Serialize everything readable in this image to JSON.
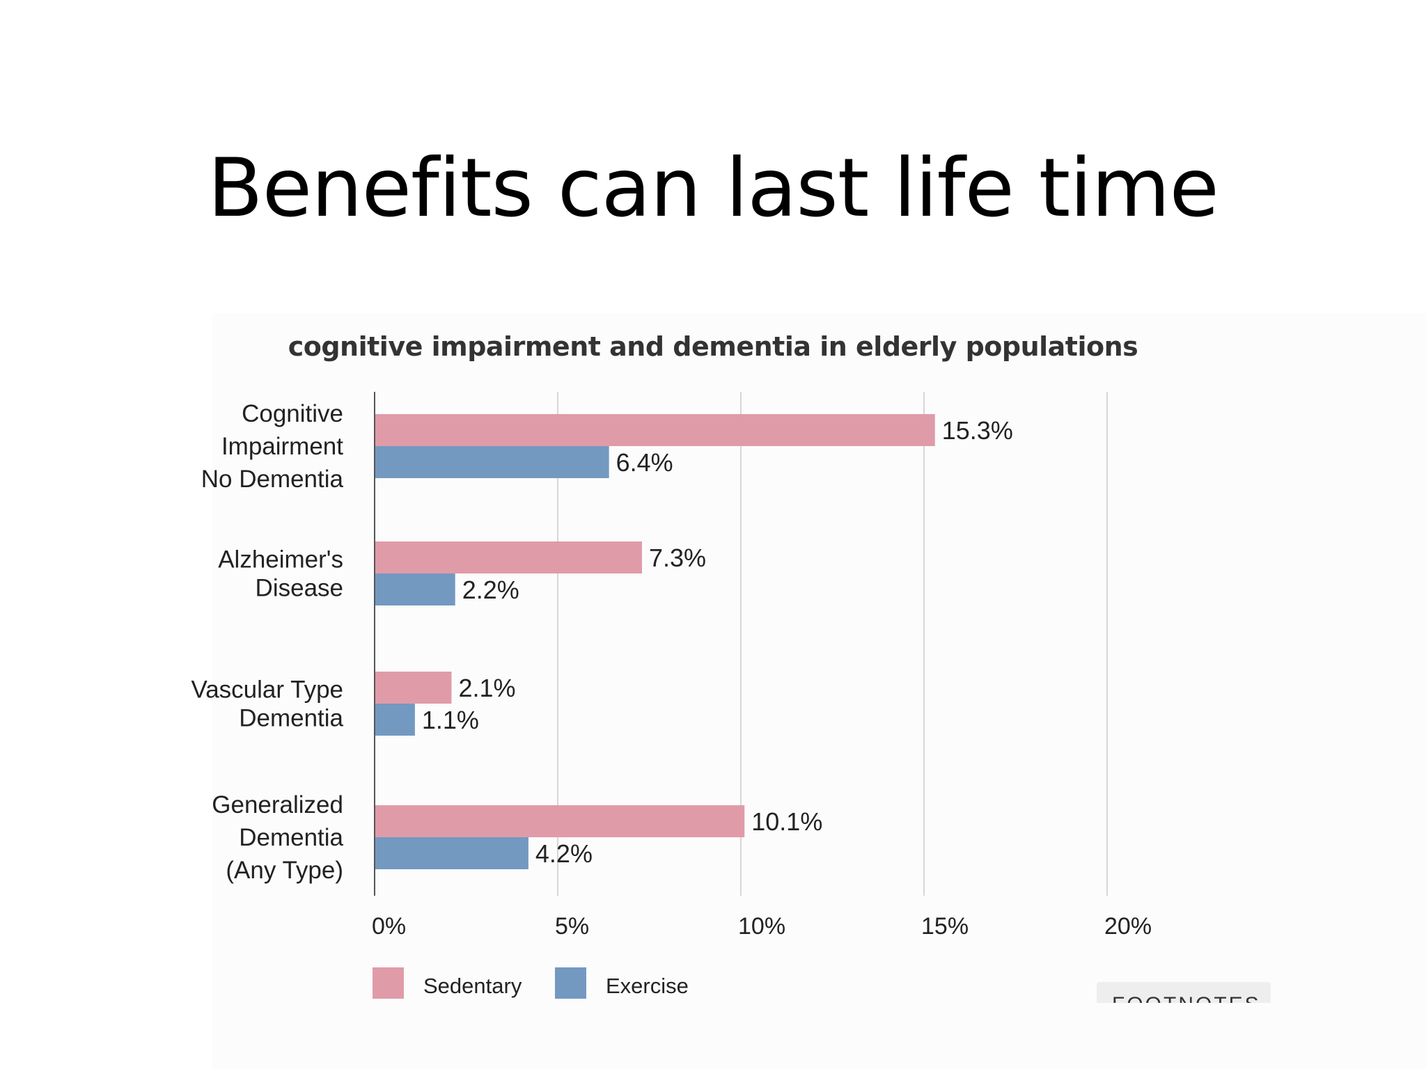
{
  "slide": {
    "title": "Benefits can last life time"
  },
  "footnotes_label": "FOOTNOTES",
  "colors": {
    "sedentary": "#e09ba9",
    "exercise": "#7399c1",
    "grid": "#c9c9cc",
    "axis": "#555555",
    "text": "#222222"
  },
  "chart_data": {
    "type": "bar",
    "orientation": "horizontal",
    "title": "cognitive impairment and dementia in elderly populations",
    "categories": [
      [
        "Cognitive",
        "Impairment",
        "No Dementia"
      ],
      [
        "Alzheimer's",
        "Disease"
      ],
      [
        "Vascular Type",
        "Dementia"
      ],
      [
        "Generalized",
        "Dementia",
        "(Any Type)"
      ]
    ],
    "series": [
      {
        "name": "Sedentary",
        "values": [
          15.3,
          7.3,
          2.1,
          10.1
        ],
        "labels": [
          "15.3%",
          "7.3%",
          "2.1%",
          "10.1%"
        ]
      },
      {
        "name": "Exercise",
        "values": [
          6.4,
          2.2,
          1.1,
          4.2
        ],
        "labels": [
          "6.4%",
          "2.2%",
          "1.1%",
          "4.2%"
        ]
      }
    ],
    "xlim": [
      0,
      20
    ],
    "xticks": [
      0,
      5,
      10,
      15,
      20
    ],
    "xtick_labels": [
      "0%",
      "5%",
      "10%",
      "15%",
      "20%"
    ],
    "grid": true,
    "legend": "bottom-left"
  }
}
